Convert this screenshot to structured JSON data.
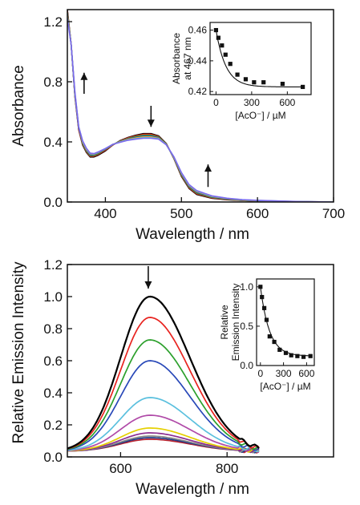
{
  "chart_data": [
    {
      "id": "absorbance",
      "type": "line",
      "title": "",
      "xlabel": "Wavelength / nm",
      "ylabel": "Absorbance",
      "xlim": [
        350,
        700
      ],
      "ylim": [
        0,
        1.28
      ],
      "xticks": [
        400,
        500,
        600,
        700
      ],
      "yticks": [
        0.0,
        0.4,
        0.8,
        1.2
      ],
      "xtick_labels": [
        "400",
        "500",
        "600",
        "700"
      ],
      "ytick_labels": [
        "0.0",
        "0.4",
        "0.8",
        "1.2"
      ],
      "x": [
        350,
        355,
        360,
        365,
        370,
        375,
        380,
        385,
        390,
        400,
        410,
        420,
        430,
        440,
        450,
        460,
        470,
        480,
        490,
        500,
        510,
        520,
        540,
        560,
        580,
        600,
        650,
        700
      ],
      "series": [
        {
          "color": "#000000",
          "values": [
            1.28,
            1.05,
            0.7,
            0.48,
            0.38,
            0.33,
            0.3,
            0.3,
            0.31,
            0.34,
            0.38,
            0.41,
            0.43,
            0.445,
            0.455,
            0.455,
            0.44,
            0.39,
            0.29,
            0.17,
            0.09,
            0.05,
            0.025,
            0.015,
            0.01,
            0.005,
            0.0,
            0.0
          ]
        },
        {
          "color": "#e8231f",
          "values": [
            1.27,
            1.05,
            0.7,
            0.48,
            0.385,
            0.335,
            0.305,
            0.305,
            0.315,
            0.345,
            0.38,
            0.408,
            0.427,
            0.44,
            0.45,
            0.45,
            0.436,
            0.388,
            0.292,
            0.175,
            0.095,
            0.055,
            0.028,
            0.017,
            0.011,
            0.006,
            0.001,
            0.0
          ]
        },
        {
          "color": "#2ca02c",
          "values": [
            1.26,
            1.05,
            0.71,
            0.49,
            0.39,
            0.34,
            0.31,
            0.31,
            0.32,
            0.35,
            0.382,
            0.406,
            0.423,
            0.435,
            0.444,
            0.444,
            0.432,
            0.386,
            0.294,
            0.18,
            0.1,
            0.06,
            0.031,
            0.019,
            0.012,
            0.007,
            0.002,
            0.0
          ]
        },
        {
          "color": "#2848b8",
          "values": [
            1.25,
            1.05,
            0.71,
            0.49,
            0.395,
            0.345,
            0.315,
            0.315,
            0.325,
            0.352,
            0.383,
            0.404,
            0.42,
            0.43,
            0.438,
            0.438,
            0.428,
            0.384,
            0.296,
            0.185,
            0.105,
            0.065,
            0.034,
            0.021,
            0.013,
            0.008,
            0.002,
            0.0
          ]
        },
        {
          "color": "#f5a623",
          "values": [
            1.24,
            1.05,
            0.72,
            0.5,
            0.4,
            0.35,
            0.32,
            0.318,
            0.328,
            0.354,
            0.384,
            0.402,
            0.417,
            0.426,
            0.433,
            0.433,
            0.424,
            0.383,
            0.298,
            0.19,
            0.11,
            0.07,
            0.037,
            0.023,
            0.014,
            0.009,
            0.003,
            0.0
          ]
        },
        {
          "color": "#5bc0de",
          "values": [
            1.23,
            1.05,
            0.72,
            0.5,
            0.405,
            0.355,
            0.322,
            0.32,
            0.33,
            0.355,
            0.384,
            0.4,
            0.414,
            0.422,
            0.428,
            0.428,
            0.421,
            0.382,
            0.3,
            0.193,
            0.113,
            0.073,
            0.039,
            0.024,
            0.015,
            0.01,
            0.003,
            0.0
          ]
        },
        {
          "color": "#7b68ee",
          "values": [
            1.22,
            1.05,
            0.73,
            0.5,
            0.408,
            0.358,
            0.325,
            0.322,
            0.332,
            0.356,
            0.384,
            0.398,
            0.411,
            0.418,
            0.424,
            0.424,
            0.418,
            0.381,
            0.302,
            0.196,
            0.116,
            0.076,
            0.041,
            0.025,
            0.016,
            0.011,
            0.004,
            0.0
          ]
        }
      ],
      "arrows": [
        {
          "x": 372,
          "y_from": 0.72,
          "y_to": 0.86,
          "direction": "up"
        },
        {
          "x": 460,
          "y_from": 0.64,
          "y_to": 0.5,
          "direction": "down"
        },
        {
          "x": 535,
          "y_from": 0.1,
          "y_to": 0.25,
          "direction": "up"
        }
      ],
      "inset": {
        "type": "scatter",
        "xlabel": "[AcO⁻] / µM",
        "ylabel": "Absorbance at 467 nm",
        "ylabel_lines": [
          "Absorbance",
          "at 467 nm"
        ],
        "xlim": [
          -50,
          800
        ],
        "ylim": [
          0.418,
          0.465
        ],
        "xticks": [
          0,
          300,
          600
        ],
        "yticks": [
          0.42,
          0.44,
          0.46
        ],
        "xtick_labels": [
          "0",
          "300",
          "600"
        ],
        "ytick_labels": [
          "0.42",
          "0.44",
          "0.46"
        ],
        "x": [
          0,
          20,
          50,
          80,
          120,
          180,
          250,
          320,
          400,
          560,
          730
        ],
        "y": [
          0.46,
          0.455,
          0.45,
          0.444,
          0.438,
          0.431,
          0.428,
          0.426,
          0.426,
          0.425,
          0.423
        ],
        "fit": true
      }
    },
    {
      "id": "emission",
      "type": "line",
      "title": "",
      "xlabel": "Wavelength / nm",
      "ylabel": "Relative Emission Intensity",
      "xlim": [
        500,
        1000
      ],
      "ylim": [
        0,
        1.2
      ],
      "xticks": [
        600,
        800
      ],
      "yticks": [
        0.0,
        0.2,
        0.4,
        0.6,
        0.8,
        1.0,
        1.2
      ],
      "xtick_labels": [
        "600",
        "800"
      ],
      "ytick_labels": [
        "0.0",
        "0.2",
        "0.4",
        "0.6",
        "0.8",
        "1.0",
        "1.2"
      ],
      "peak_nm": 655,
      "range_nm": [
        500,
        860
      ],
      "series": [
        {
          "color": "#000000",
          "peak": 1.0
        },
        {
          "color": "#e8231f",
          "peak": 0.87
        },
        {
          "color": "#2ca02c",
          "peak": 0.73
        },
        {
          "color": "#2848b8",
          "peak": 0.6
        },
        {
          "color": "#5bc0de",
          "peak": 0.37
        },
        {
          "color": "#b04aa8",
          "peak": 0.26
        },
        {
          "color": "#e5d000",
          "peak": 0.18
        },
        {
          "color": "#8b2c8f",
          "peak": 0.15
        },
        {
          "color": "#888888",
          "peak": 0.13
        },
        {
          "color": "#1e3a8a",
          "peak": 0.12
        },
        {
          "color": "#b8222e",
          "peak": 0.11
        }
      ],
      "arrows": [
        {
          "x": 652,
          "y_from": 1.19,
          "y_to": 1.05,
          "direction": "down"
        }
      ],
      "inset": {
        "type": "scatter",
        "xlabel": "[AcO⁻] / µM",
        "ylabel": "Relative Emission Intensity",
        "ylabel_lines": [
          "Relative",
          "Emission Intensity"
        ],
        "xlim": [
          -50,
          700
        ],
        "ylim": [
          0,
          1.1
        ],
        "xticks": [
          0,
          300,
          600
        ],
        "yticks": [
          0.0,
          0.5,
          1.0
        ],
        "xtick_labels": [
          "0",
          "300",
          "600"
        ],
        "ytick_labels": [
          "0.0",
          "0.5",
          "1.0"
        ],
        "x": [
          0,
          20,
          50,
          80,
          120,
          180,
          250,
          330,
          400,
          480,
          560,
          650
        ],
        "y": [
          1.0,
          0.87,
          0.73,
          0.58,
          0.37,
          0.3,
          0.2,
          0.16,
          0.13,
          0.12,
          0.11,
          0.12
        ],
        "fit": true
      }
    }
  ]
}
